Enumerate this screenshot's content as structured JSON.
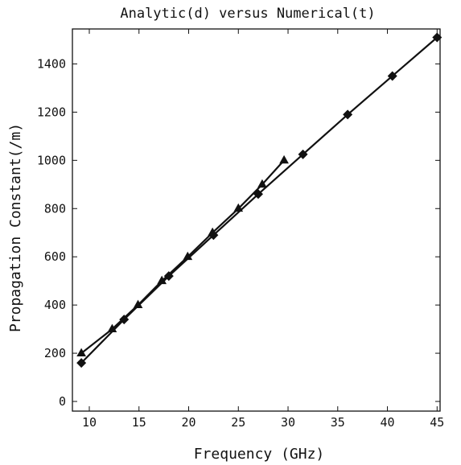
{
  "chart_data": {
    "type": "line",
    "title": "Analytic(d) versus Numerical(t)",
    "xlabel": "Frequency (GHz)",
    "ylabel": "Propagation Constant(/m)",
    "xlim": [
      8.3,
      45.3
    ],
    "ylim": [
      -40,
      1545
    ],
    "xticks": [
      10,
      15,
      20,
      25,
      30,
      35,
      40,
      45
    ],
    "yticks": [
      0,
      200,
      400,
      600,
      800,
      1000,
      1200,
      1400
    ],
    "grid": false,
    "legend": "none",
    "series": [
      {
        "marker": "diamond",
        "points": [
          {
            "x": 9.2,
            "y": 160
          },
          {
            "x": 13.5,
            "y": 340
          },
          {
            "x": 18.0,
            "y": 520
          },
          {
            "x": 22.5,
            "y": 690
          },
          {
            "x": 27.0,
            "y": 860
          },
          {
            "x": 31.5,
            "y": 1025
          },
          {
            "x": 36.0,
            "y": 1190
          },
          {
            "x": 40.5,
            "y": 1350
          },
          {
            "x": 45.0,
            "y": 1510
          }
        ]
      },
      {
        "marker": "triangle",
        "points": [
          {
            "x": 9.2,
            "y": 200
          },
          {
            "x": 12.3,
            "y": 300
          },
          {
            "x": 14.9,
            "y": 400
          },
          {
            "x": 17.3,
            "y": 500
          },
          {
            "x": 19.9,
            "y": 600
          },
          {
            "x": 22.4,
            "y": 700
          },
          {
            "x": 25.0,
            "y": 800
          },
          {
            "x": 27.4,
            "y": 900
          },
          {
            "x": 29.6,
            "y": 1000
          }
        ]
      }
    ]
  }
}
